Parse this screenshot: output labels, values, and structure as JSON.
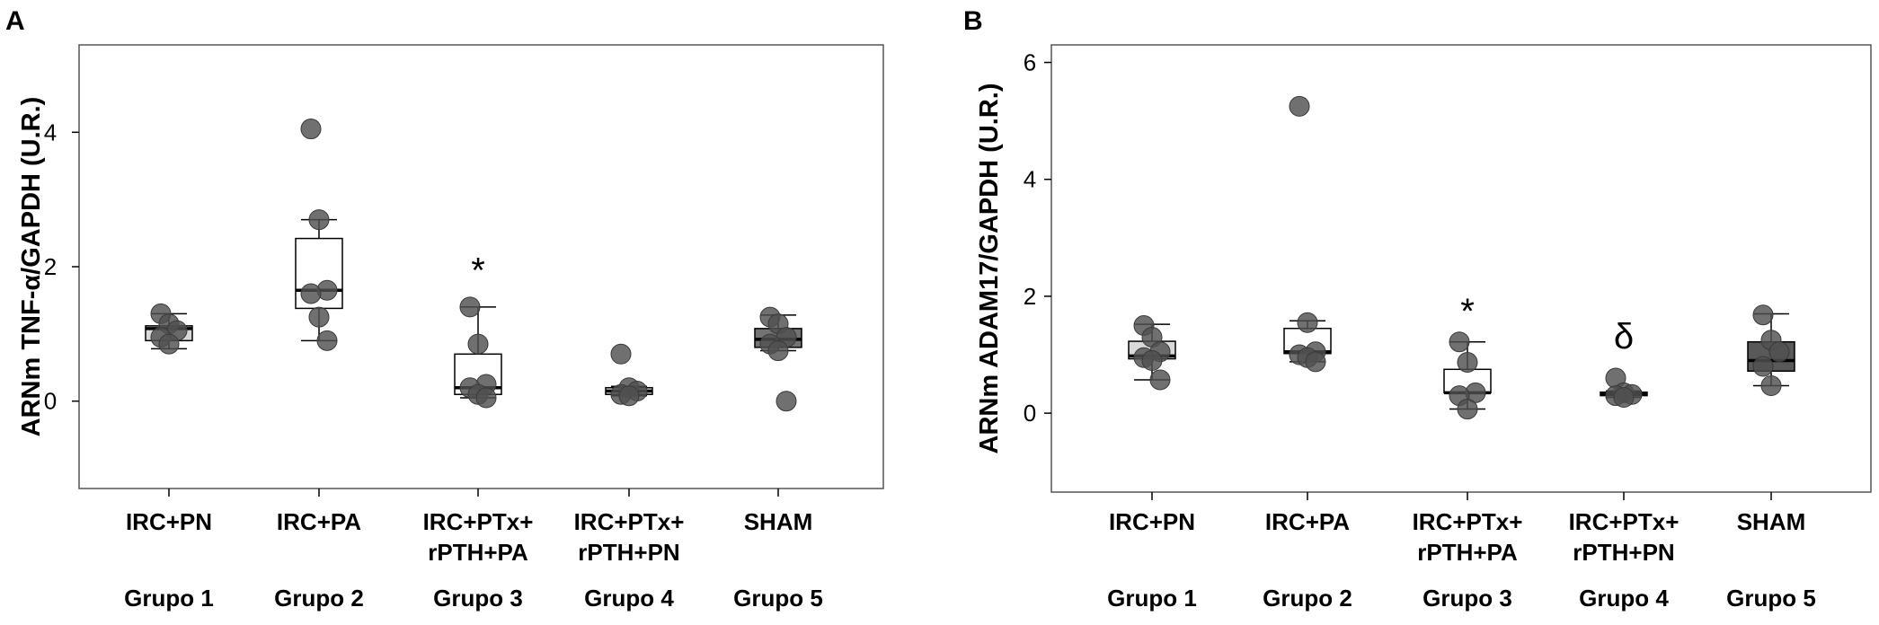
{
  "chart_data": [
    {
      "type": "box",
      "panel_label": "A",
      "ylabel": "ARNm TNF-α/GAPDH (U.R.)",
      "ylim": [
        -1.3,
        5.3
      ],
      "yticks": [
        0,
        2,
        4
      ],
      "categories": [
        {
          "lines": [
            "IRC+PN"
          ],
          "group": "Grupo 1"
        },
        {
          "lines": [
            "IRC+PA"
          ],
          "group": "Grupo 2"
        },
        {
          "lines": [
            "IRC+PTx+",
            "rPTH+PA"
          ],
          "group": "Grupo 3"
        },
        {
          "lines": [
            "IRC+PTx+",
            "rPTH+PN"
          ],
          "group": "Grupo 4"
        },
        {
          "lines": [
            "SHAM"
          ],
          "group": "Grupo 5"
        }
      ],
      "boxes": [
        {
          "fill": "#d9d9d9",
          "wlo": 0.78,
          "q1": 0.9,
          "median": 1.08,
          "q3": 1.12,
          "whi": 1.3,
          "points": [
            1.3,
            1.15,
            1.05,
            0.95,
            0.85
          ]
        },
        {
          "fill": "#ffffff",
          "wlo": 0.9,
          "q1": 1.38,
          "median": 1.65,
          "q3": 2.42,
          "whi": 2.7,
          "points": [
            4.05,
            2.7,
            1.65,
            1.6,
            1.25,
            0.9
          ]
        },
        {
          "fill": "#ffffff",
          "wlo": 0.05,
          "q1": 0.1,
          "median": 0.2,
          "q3": 0.7,
          "whi": 1.4,
          "points": [
            1.4,
            0.85,
            0.25,
            0.2,
            0.1,
            0.05
          ]
        },
        {
          "fill": "#d9d9d9",
          "wlo": 0.08,
          "q1": 0.1,
          "median": 0.15,
          "q3": 0.2,
          "whi": 0.22,
          "points": [
            0.7,
            0.2,
            0.15,
            0.1,
            0.08
          ]
        },
        {
          "fill": "#737373",
          "wlo": 0.75,
          "q1": 0.8,
          "median": 0.92,
          "q3": 1.08,
          "whi": 1.28,
          "points": [
            1.25,
            1.15,
            0.95,
            0.85,
            0.75,
            0.0
          ]
        }
      ],
      "annotations": [
        {
          "index": 2,
          "y": 1.95,
          "text": "*"
        }
      ]
    },
    {
      "type": "box",
      "panel_label": "B",
      "ylabel": "ARNm ADAM17/GAPDH (U.R.)",
      "ylim": [
        -1.35,
        6.3
      ],
      "yticks": [
        0,
        2,
        4,
        6
      ],
      "categories": [
        {
          "lines": [
            "IRC+PN"
          ],
          "group": "Grupo 1"
        },
        {
          "lines": [
            "IRC+PA"
          ],
          "group": "Grupo 2"
        },
        {
          "lines": [
            "IRC+PTx+",
            "rPTH+PA"
          ],
          "group": "Grupo 3"
        },
        {
          "lines": [
            "IRC+PTx+",
            "rPTH+PN"
          ],
          "group": "Grupo 4"
        },
        {
          "lines": [
            "SHAM"
          ],
          "group": "Grupo 5"
        }
      ],
      "boxes": [
        {
          "fill": "#d9d9d9",
          "wlo": 0.57,
          "q1": 0.93,
          "median": 0.98,
          "q3": 1.23,
          "whi": 1.52,
          "points": [
            1.5,
            1.3,
            1.05,
            0.95,
            0.9,
            0.57
          ]
        },
        {
          "fill": "#ffffff",
          "wlo": 0.88,
          "q1": 1.02,
          "median": 1.05,
          "q3": 1.45,
          "whi": 1.58,
          "points": [
            5.25,
            1.55,
            1.05,
            1.0,
            0.95,
            0.88
          ]
        },
        {
          "fill": "#ffffff",
          "wlo": 0.07,
          "q1": 0.35,
          "median": 0.35,
          "q3": 0.75,
          "whi": 1.22,
          "points": [
            1.22,
            0.87,
            0.35,
            0.3,
            0.07
          ]
        },
        {
          "fill": "#d9d9d9",
          "wlo": 0.27,
          "q1": 0.3,
          "median": 0.33,
          "q3": 0.36,
          "whi": 0.38,
          "points": [
            0.6,
            0.35,
            0.32,
            0.3,
            0.27
          ]
        },
        {
          "fill": "#595959",
          "wlo": 0.47,
          "q1": 0.72,
          "median": 0.9,
          "q3": 1.22,
          "whi": 1.7,
          "points": [
            1.68,
            1.25,
            1.05,
            0.8,
            0.47
          ]
        }
      ],
      "annotations": [
        {
          "index": 2,
          "y": 1.75,
          "text": "*"
        },
        {
          "index": 3,
          "y": 1.32,
          "text": "δ"
        }
      ]
    }
  ]
}
